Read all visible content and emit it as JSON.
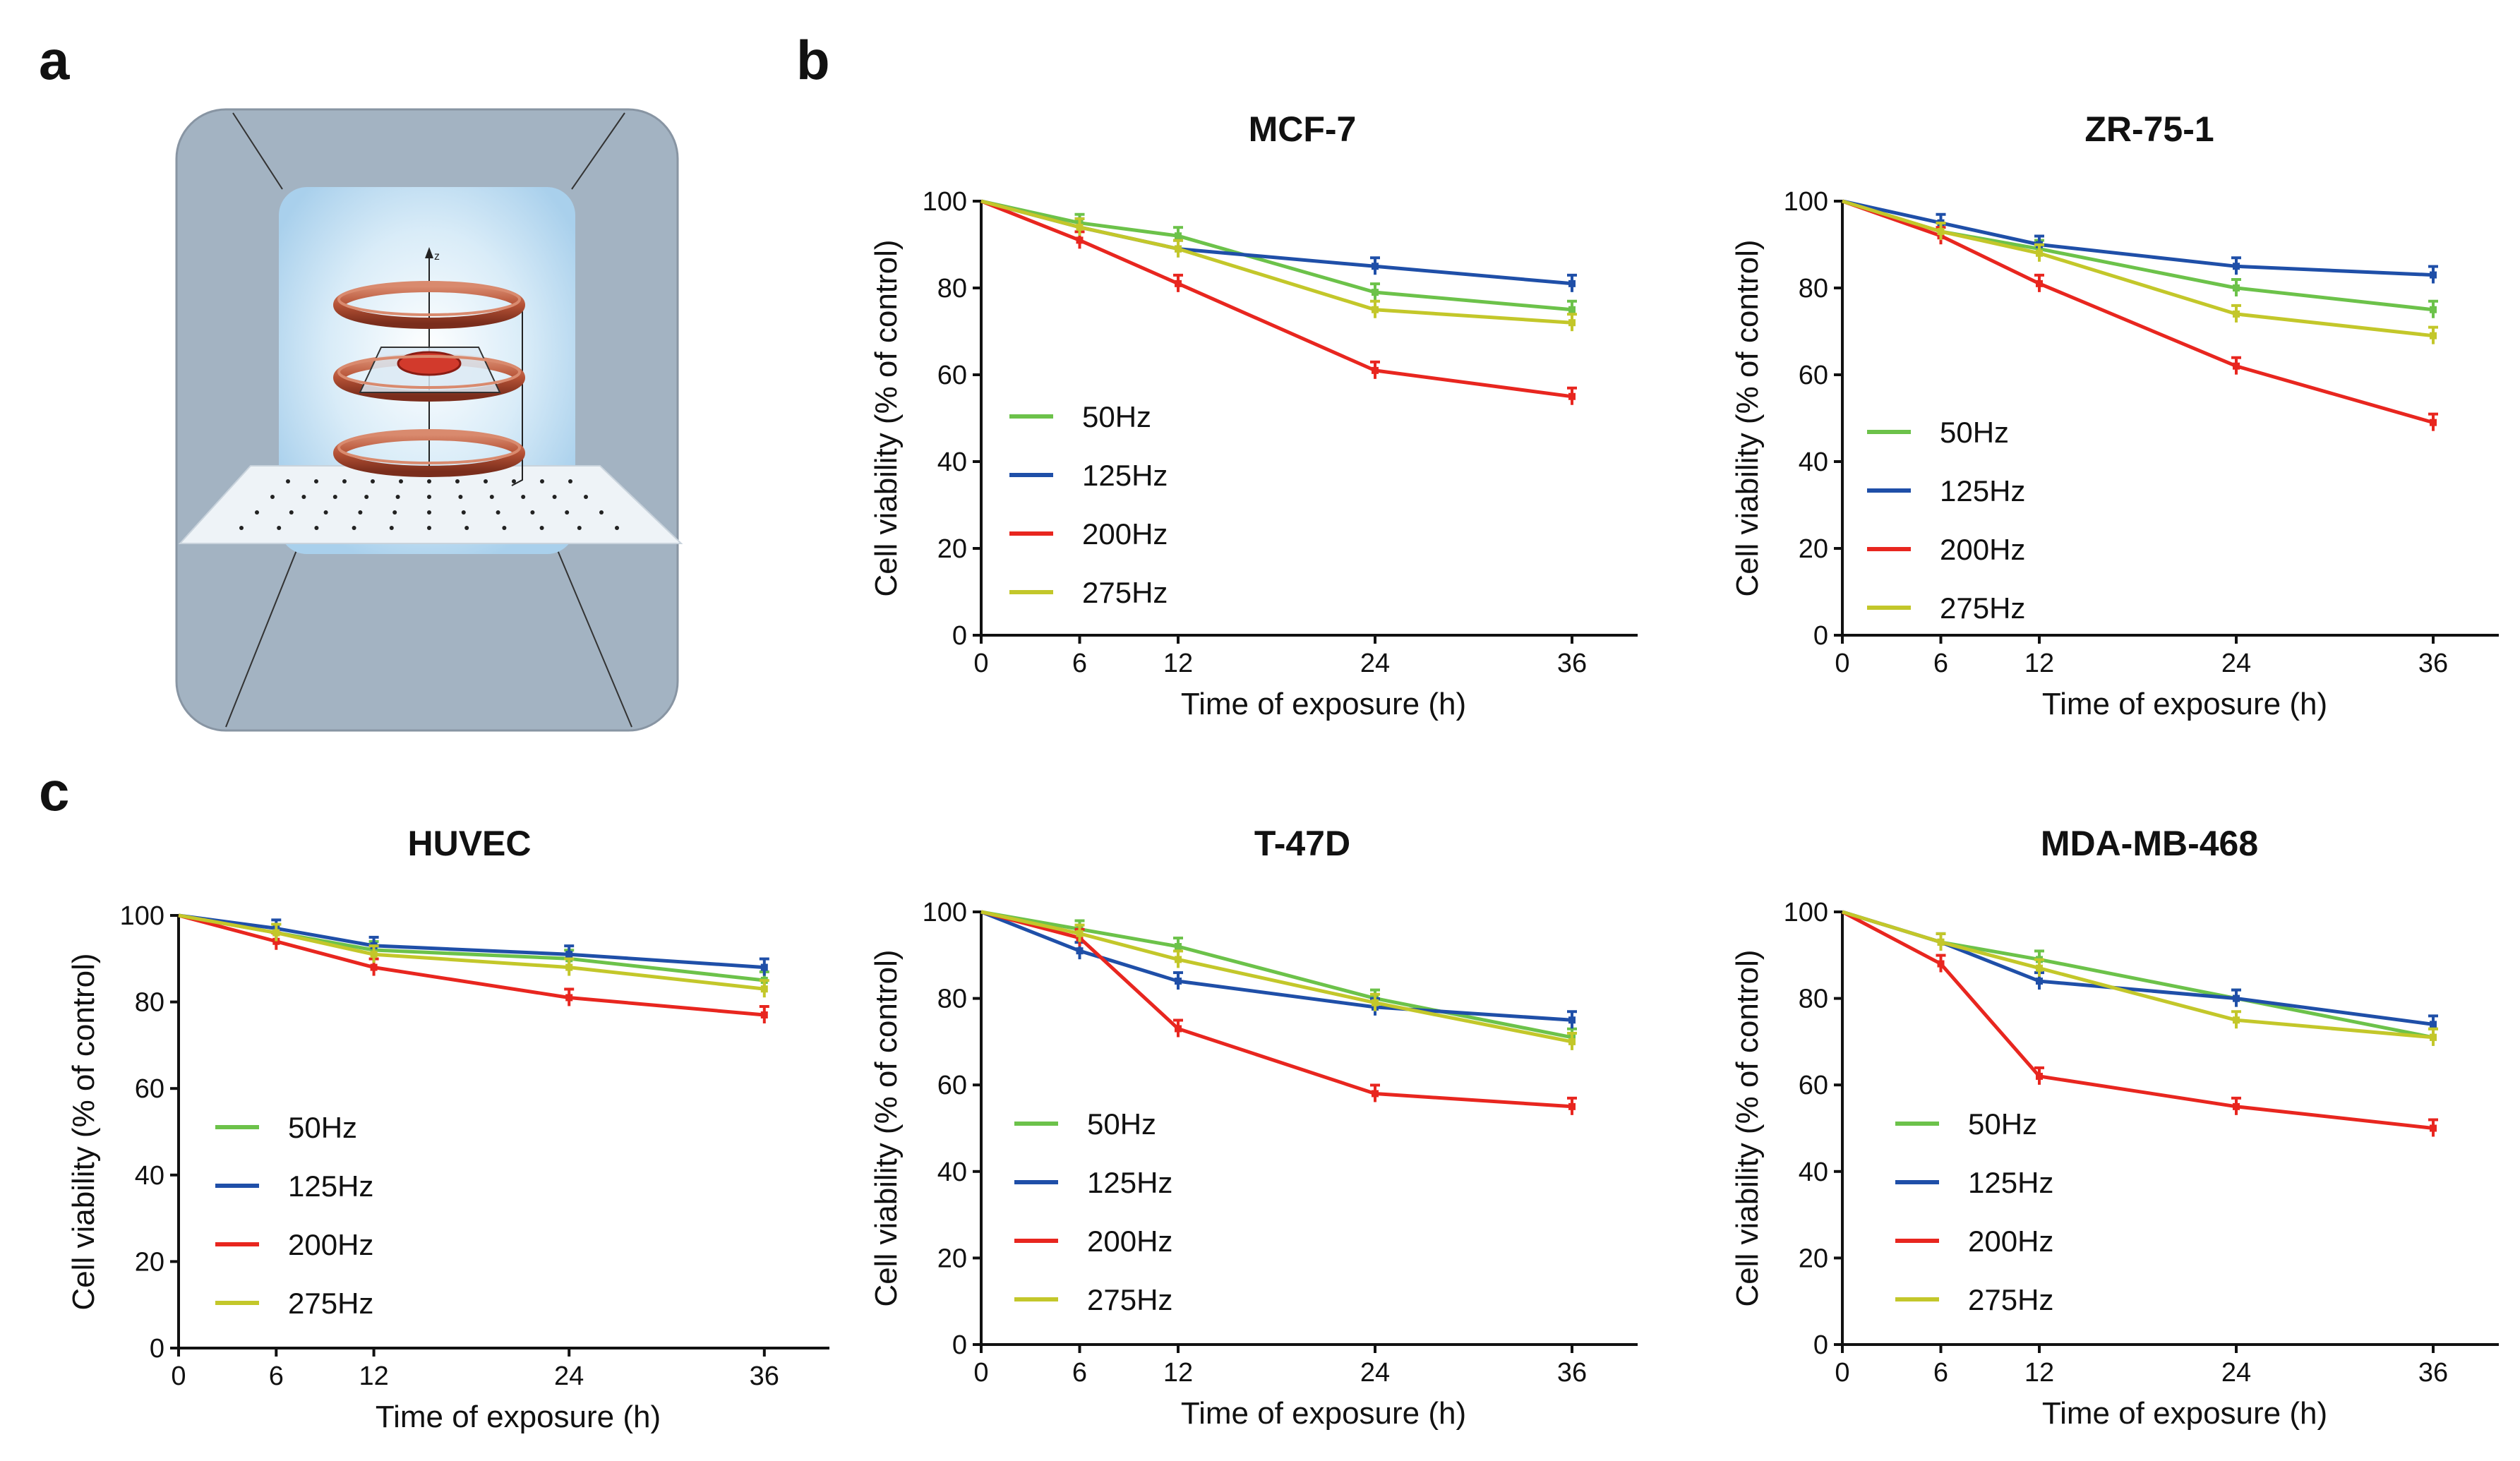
{
  "panel_labels": [
    "a",
    "b",
    "c"
  ],
  "colors": {
    "50Hz": "#6cc24a",
    "125Hz": "#1f4fa8",
    "200Hz": "#e8261f",
    "275Hz": "#c3c72a"
  },
  "chart_data": [
    {
      "type": "line",
      "title": "MCF-7",
      "xlabel": "Time of  exposure (h)",
      "ylabel": "Cell viability (% of control)",
      "x": [
        0,
        6,
        12,
        24,
        36
      ],
      "x_ticks": [
        "0",
        "6",
        "12",
        "24",
        "36"
      ],
      "y_ticks": [
        "0",
        "20",
        "40",
        "60",
        "80",
        "100"
      ],
      "xlim": [
        0,
        40
      ],
      "ylim": [
        0,
        100
      ],
      "series": [
        {
          "name": "50Hz",
          "values": [
            100,
            95,
            92,
            79,
            75
          ]
        },
        {
          "name": "125Hz",
          "values": [
            100,
            94,
            89,
            85,
            81
          ]
        },
        {
          "name": "200Hz",
          "values": [
            100,
            91,
            81,
            61,
            55
          ]
        },
        {
          "name": "275Hz",
          "values": [
            100,
            94,
            89,
            75,
            72
          ]
        }
      ]
    },
    {
      "type": "line",
      "title": "ZR-75-1",
      "xlabel": "Time of  exposure (h)",
      "ylabel": "Cell viability (% of control)",
      "x": [
        0,
        6,
        12,
        24,
        36
      ],
      "x_ticks": [
        "0",
        "6",
        "12",
        "24",
        "36"
      ],
      "y_ticks": [
        "0",
        "20",
        "40",
        "60",
        "80",
        "100"
      ],
      "xlim": [
        0,
        40
      ],
      "ylim": [
        0,
        100
      ],
      "series": [
        {
          "name": "50Hz",
          "values": [
            100,
            93,
            89,
            80,
            75
          ]
        },
        {
          "name": "125Hz",
          "values": [
            100,
            95,
            90,
            85,
            83
          ]
        },
        {
          "name": "200Hz",
          "values": [
            100,
            92,
            81,
            62,
            49
          ]
        },
        {
          "name": "275Hz",
          "values": [
            100,
            93,
            88,
            74,
            69
          ]
        }
      ]
    },
    {
      "type": "line",
      "title": "HUVEC",
      "xlabel": "Time of  exposure (h)",
      "ylabel": "Cell viability (% of control)",
      "x": [
        0,
        6,
        12,
        24,
        36
      ],
      "x_ticks": [
        "0",
        "6",
        "12",
        "24",
        "36"
      ],
      "y_ticks": [
        "0",
        "20",
        "40",
        "60",
        "80",
        "100"
      ],
      "xlim": [
        0,
        40
      ],
      "ylim": [
        0,
        100
      ],
      "series": [
        {
          "name": "50Hz",
          "values": [
            100,
            96,
            92,
            90,
            85
          ]
        },
        {
          "name": "125Hz",
          "values": [
            100,
            97,
            93,
            91,
            88
          ]
        },
        {
          "name": "200Hz",
          "values": [
            100,
            94,
            88,
            81,
            77
          ]
        },
        {
          "name": "275Hz",
          "values": [
            100,
            96,
            91,
            88,
            83
          ]
        }
      ]
    },
    {
      "type": "line",
      "title": "T-47D",
      "xlabel": "Time of  exposure (h)",
      "ylabel": "Cell viability (% of control)",
      "x": [
        0,
        6,
        12,
        24,
        36
      ],
      "x_ticks": [
        "0",
        "6",
        "12",
        "24",
        "36"
      ],
      "y_ticks": [
        "0",
        "20",
        "40",
        "60",
        "80",
        "100"
      ],
      "xlim": [
        0,
        40
      ],
      "ylim": [
        0,
        100
      ],
      "series": [
        {
          "name": "50Hz",
          "values": [
            100,
            96,
            92,
            80,
            71
          ]
        },
        {
          "name": "125Hz",
          "values": [
            100,
            91,
            84,
            78,
            75
          ]
        },
        {
          "name": "200Hz",
          "values": [
            100,
            94,
            73,
            58,
            55
          ]
        },
        {
          "name": "275Hz",
          "values": [
            100,
            95,
            89,
            79,
            70
          ]
        }
      ]
    },
    {
      "type": "line",
      "title": "MDA-MB-468",
      "xlabel": "Time of  exposure (h)",
      "ylabel": "Cell viability (% of control)",
      "x": [
        0,
        6,
        12,
        24,
        36
      ],
      "x_ticks": [
        "0",
        "6",
        "12",
        "24",
        "36"
      ],
      "y_ticks": [
        "0",
        "20",
        "40",
        "60",
        "80",
        "100"
      ],
      "xlim": [
        0,
        40
      ],
      "ylim": [
        0,
        100
      ],
      "series": [
        {
          "name": "50Hz",
          "values": [
            100,
            93,
            89,
            80,
            71
          ]
        },
        {
          "name": "125Hz",
          "values": [
            100,
            93,
            84,
            80,
            74
          ]
        },
        {
          "name": "200Hz",
          "values": [
            100,
            88,
            62,
            55,
            50
          ]
        },
        {
          "name": "275Hz",
          "values": [
            100,
            93,
            87,
            75,
            71
          ]
        }
      ]
    }
  ]
}
